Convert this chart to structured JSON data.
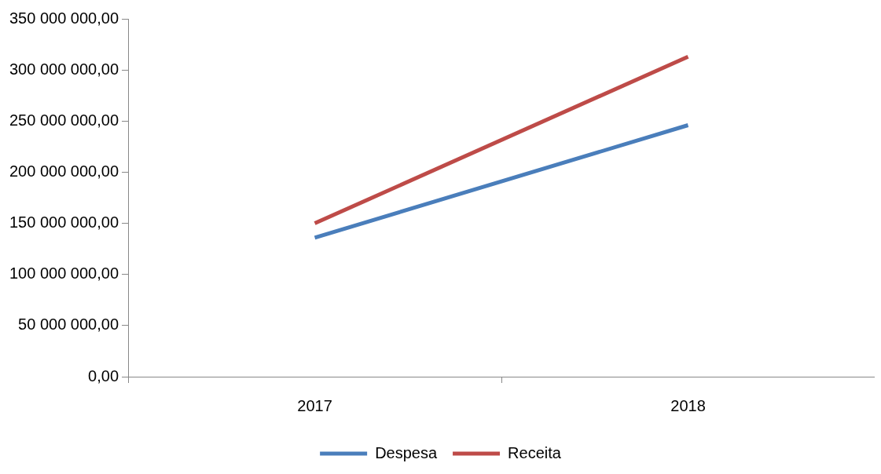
{
  "chart_data": {
    "type": "line",
    "categories": [
      "2017",
      "2018"
    ],
    "series": [
      {
        "name": "Despesa",
        "color": "#4a7ebb",
        "values": [
          136000000,
          246000000
        ]
      },
      {
        "name": "Receita",
        "color": "#be4b48",
        "values": [
          150000000,
          313000000
        ]
      }
    ],
    "ylim": [
      0,
      350000000
    ],
    "yticks": [
      {
        "value": 0,
        "label": "0,00"
      },
      {
        "value": 50000000,
        "label": "50 000 000,00"
      },
      {
        "value": 100000000,
        "label": "100 000 000,00"
      },
      {
        "value": 150000000,
        "label": "150 000 000,00"
      },
      {
        "value": 200000000,
        "label": "200 000 000,00"
      },
      {
        "value": 250000000,
        "label": "250 000 000,00"
      },
      {
        "value": 300000000,
        "label": "300 000 000,00"
      },
      {
        "value": 350000000,
        "label": "350 000 000,00"
      }
    ],
    "grid": false,
    "legend": "bottom",
    "marker": "none",
    "line_style": "solid"
  }
}
